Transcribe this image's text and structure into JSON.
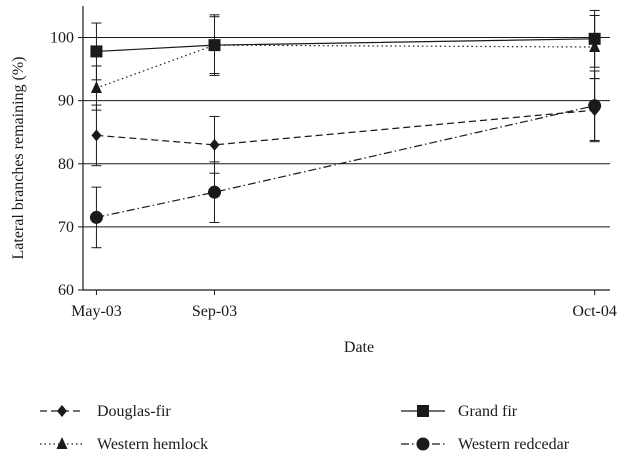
{
  "chart_data": {
    "type": "line",
    "title": "",
    "xlabel": "Date",
    "ylabel": "Lateral branches remaining (%)",
    "ylim": [
      60,
      105
    ],
    "yticks": [
      60,
      70,
      80,
      90,
      100
    ],
    "x_date_range": [
      "2003-05-01",
      "2004-10-31"
    ],
    "x": [
      "2003-05-15",
      "2003-09-15",
      "2004-10-15"
    ],
    "xtick_labels": [
      "May-03",
      "Sep-03",
      "Oct-04"
    ],
    "grid": "horizontal",
    "legend_position": "bottom",
    "series": [
      {
        "name": "Douglas-fir",
        "marker": "diamond",
        "dash": "dashed",
        "values": [
          84.5,
          83.0,
          88.5
        ],
        "error": [
          4.8,
          4.5,
          5.0
        ]
      },
      {
        "name": "Grand fir",
        "marker": "square",
        "dash": "solid",
        "values": [
          97.8,
          98.8,
          99.8
        ],
        "error": [
          4.5,
          4.8,
          4.5
        ]
      },
      {
        "name": "Western hemlock",
        "marker": "triangle",
        "dash": "dotted",
        "values": [
          92.0,
          98.8,
          98.5
        ],
        "error": [
          3.5,
          4.5,
          5.0
        ]
      },
      {
        "name": "Western redcedar",
        "marker": "circle",
        "dash": "dashdot",
        "values": [
          71.5,
          75.5,
          89.2
        ],
        "error": [
          4.8,
          4.8,
          5.5
        ]
      }
    ],
    "colors": {
      "ink": "#1a1a1a",
      "grid": "#1a1a1a"
    }
  }
}
